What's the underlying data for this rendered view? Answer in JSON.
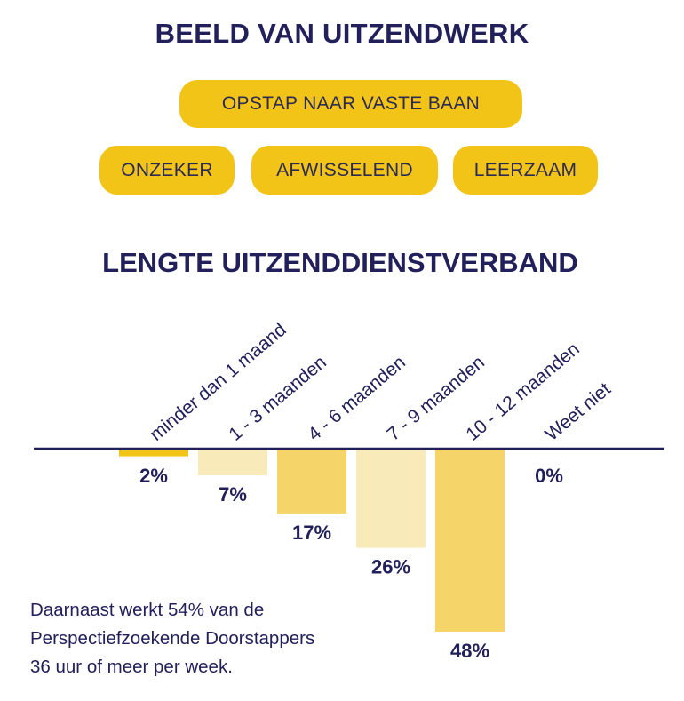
{
  "heading": "BEELD VAN UITZENDWERK",
  "tags": [
    "OPSTAP NAAR VASTE BAAN",
    "ONZEKER",
    "AFWISSELEND",
    "LEERZAAM"
  ],
  "colors": {
    "navy": "#22205a",
    "pill": "#f3c418",
    "bar_strong": "#f5d46a",
    "bar_light": "#f8eab9",
    "bar_first": "#f3c418"
  },
  "chart_data": {
    "type": "bar",
    "title": "LENGTE UITZENDDIENSTVERBAND",
    "orientation": "downward",
    "categories": [
      "minder dan 1 maand",
      "1 - 3 maanden",
      "4 - 6 maanden",
      "7 - 9 maanden",
      "10 - 12 maanden",
      "Weet niet"
    ],
    "values": [
      2,
      7,
      17,
      26,
      48,
      0
    ],
    "value_labels": [
      "2%",
      "7%",
      "17%",
      "26%",
      "48%",
      "0%"
    ],
    "unit": "%",
    "ylim": [
      0,
      48
    ]
  },
  "note": {
    "line1": "Daarnaast werkt 54% van de",
    "line2": "Perspectiefzoekende Doorstappers",
    "line3": "36 uur of meer per week."
  }
}
